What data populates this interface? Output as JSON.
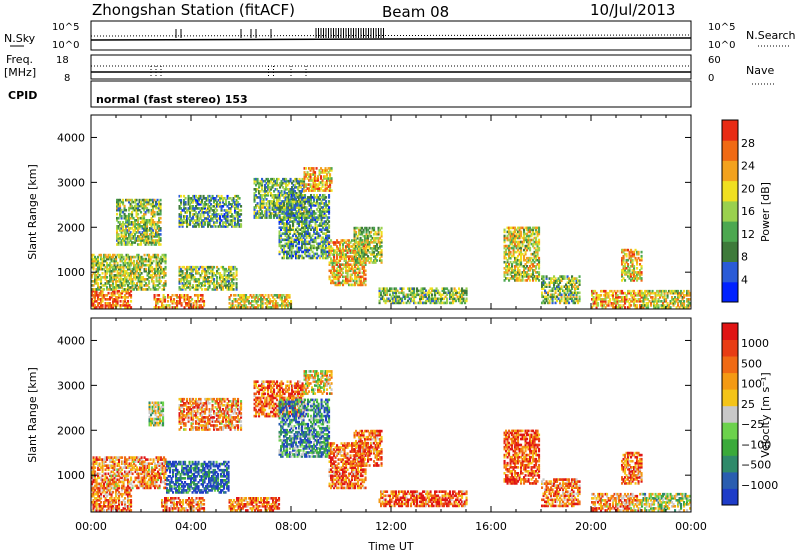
{
  "header": {
    "title": "Zhongshan Station (fitACF)",
    "beam": "Beam 08",
    "date": "10/Jul/2013"
  },
  "summary_panels": {
    "nsky_label": "N.Sky",
    "nsearch_label": "N.Search",
    "nsky_ticks": [
      "10^5",
      "10^0"
    ],
    "nsearch_ticks": [
      "10^5",
      "10^0"
    ],
    "freq_label": "Freq.",
    "freq_unit": "[MHz]",
    "freq_ticks": [
      "18",
      "8"
    ],
    "nave_label": "Nave",
    "nave_ticks": [
      "60",
      "0"
    ],
    "cpid_label": "CPID",
    "cpid_text": "normal (fast stereo) 153"
  },
  "chart_data": [
    {
      "type": "heatmap",
      "name": "power",
      "ylabel": "Slant Range [km]",
      "xlabel": "",
      "xlim": [
        0,
        24
      ],
      "ylim": [
        180,
        4500
      ],
      "yticks": [
        1000,
        2000,
        3000,
        4000
      ],
      "colorbar": {
        "label": "Power [dB]",
        "ticks": [
          "28",
          "24",
          "20",
          "16",
          "12",
          "8",
          "4"
        ],
        "colors": [
          "#0022ff",
          "#2a5bd7",
          "#3e7a3a",
          "#4ca850",
          "#9ad14e",
          "#f0e020",
          "#f3a21d",
          "#f06a14",
          "#e82b14"
        ]
      },
      "echo_regions": [
        {
          "t": [
            0.0,
            1.6
          ],
          "r": [
            200,
            600
          ],
          "level": 0.85
        },
        {
          "t": [
            0.0,
            3.0
          ],
          "r": [
            600,
            1400
          ],
          "level": 0.5
        },
        {
          "t": [
            1.0,
            2.8
          ],
          "r": [
            1600,
            2600
          ],
          "level": 0.45
        },
        {
          "t": [
            2.5,
            4.5
          ],
          "r": [
            200,
            500
          ],
          "level": 0.8
        },
        {
          "t": [
            3.5,
            5.8
          ],
          "r": [
            600,
            1100
          ],
          "level": 0.45
        },
        {
          "t": [
            3.5,
            6.0
          ],
          "r": [
            2000,
            2700
          ],
          "level": 0.35
        },
        {
          "t": [
            5.5,
            8.0
          ],
          "r": [
            200,
            500
          ],
          "level": 0.6
        },
        {
          "t": [
            6.5,
            8.5
          ],
          "r": [
            2200,
            3100
          ],
          "level": 0.4
        },
        {
          "t": [
            7.5,
            9.5
          ],
          "r": [
            1300,
            2700
          ],
          "level": 0.35
        },
        {
          "t": [
            8.5,
            9.6
          ],
          "r": [
            2800,
            3300
          ],
          "level": 0.7
        },
        {
          "t": [
            9.5,
            11.0
          ],
          "r": [
            700,
            1700
          ],
          "level": 0.65
        },
        {
          "t": [
            10.5,
            11.6
          ],
          "r": [
            1200,
            2000
          ],
          "level": 0.5
        },
        {
          "t": [
            11.5,
            15.0
          ],
          "r": [
            300,
            650
          ],
          "level": 0.45
        },
        {
          "t": [
            16.5,
            17.9
          ],
          "r": [
            800,
            2000
          ],
          "level": 0.55
        },
        {
          "t": [
            18.0,
            19.5
          ],
          "r": [
            300,
            900
          ],
          "level": 0.45
        },
        {
          "t": [
            20.0,
            22.0
          ],
          "r": [
            200,
            600
          ],
          "level": 0.75
        },
        {
          "t": [
            21.2,
            22.0
          ],
          "r": [
            800,
            1500
          ],
          "level": 0.65
        },
        {
          "t": [
            22.0,
            24.0
          ],
          "r": [
            200,
            600
          ],
          "level": 0.55
        }
      ]
    },
    {
      "type": "heatmap",
      "name": "velocity",
      "ylabel": "Slant Range [km]",
      "xlabel": "Time UT",
      "xlim": [
        0,
        24
      ],
      "ylim": [
        180,
        4500
      ],
      "yticks": [
        1000,
        2000,
        3000,
        4000
      ],
      "xticks": [
        "00:00",
        "04:00",
        "08:00",
        "12:00",
        "16:00",
        "20:00",
        "00:00"
      ],
      "colorbar": {
        "label": "Velocity [m s⁻¹]",
        "ticks": [
          "1000",
          "500",
          "100",
          "25",
          "−25",
          "−100",
          "−500",
          "−1000"
        ],
        "colors": [
          "#1e3cc8",
          "#2a5db0",
          "#2f8a6a",
          "#3aaa3a",
          "#6cd24c",
          "#c8c8c8",
          "#f4c418",
          "#f49a14",
          "#f06a14",
          "#e83c14",
          "#e01414"
        ]
      },
      "echo_regions": [
        {
          "t": [
            0.0,
            1.6
          ],
          "r": [
            200,
            700
          ],
          "level": 0.75
        },
        {
          "t": [
            0.0,
            3.0
          ],
          "r": [
            700,
            1400
          ],
          "level": 0.7
        },
        {
          "t": [
            2.3,
            2.9
          ],
          "r": [
            2100,
            2600
          ],
          "level": 0.45
        },
        {
          "t": [
            2.8,
            4.5
          ],
          "r": [
            200,
            500
          ],
          "level": 0.75
        },
        {
          "t": [
            3.0,
            5.5
          ],
          "r": [
            600,
            1300
          ],
          "level": 0.1
        },
        {
          "t": [
            3.5,
            6.0
          ],
          "r": [
            2000,
            2700
          ],
          "level": 0.7
        },
        {
          "t": [
            5.5,
            7.5
          ],
          "r": [
            200,
            500
          ],
          "level": 0.8
        },
        {
          "t": [
            6.5,
            8.5
          ],
          "r": [
            2300,
            3100
          ],
          "level": 0.8
        },
        {
          "t": [
            7.5,
            9.5
          ],
          "r": [
            1400,
            2700
          ],
          "level": 0.25
        },
        {
          "t": [
            8.5,
            9.6
          ],
          "r": [
            2800,
            3300
          ],
          "level": 0.55
        },
        {
          "t": [
            9.5,
            11.0
          ],
          "r": [
            700,
            1700
          ],
          "level": 0.78
        },
        {
          "t": [
            10.5,
            11.6
          ],
          "r": [
            1200,
            2000
          ],
          "level": 0.78
        },
        {
          "t": [
            11.5,
            15.0
          ],
          "r": [
            300,
            650
          ],
          "level": 0.8
        },
        {
          "t": [
            16.5,
            17.9
          ],
          "r": [
            800,
            2000
          ],
          "level": 0.85
        },
        {
          "t": [
            18.0,
            19.5
          ],
          "r": [
            300,
            900
          ],
          "level": 0.75
        },
        {
          "t": [
            20.0,
            22.0
          ],
          "r": [
            200,
            600
          ],
          "level": 0.7
        },
        {
          "t": [
            21.2,
            22.0
          ],
          "r": [
            800,
            1500
          ],
          "level": 0.8
        },
        {
          "t": [
            22.0,
            24.0
          ],
          "r": [
            200,
            600
          ],
          "level": 0.45
        }
      ]
    }
  ]
}
